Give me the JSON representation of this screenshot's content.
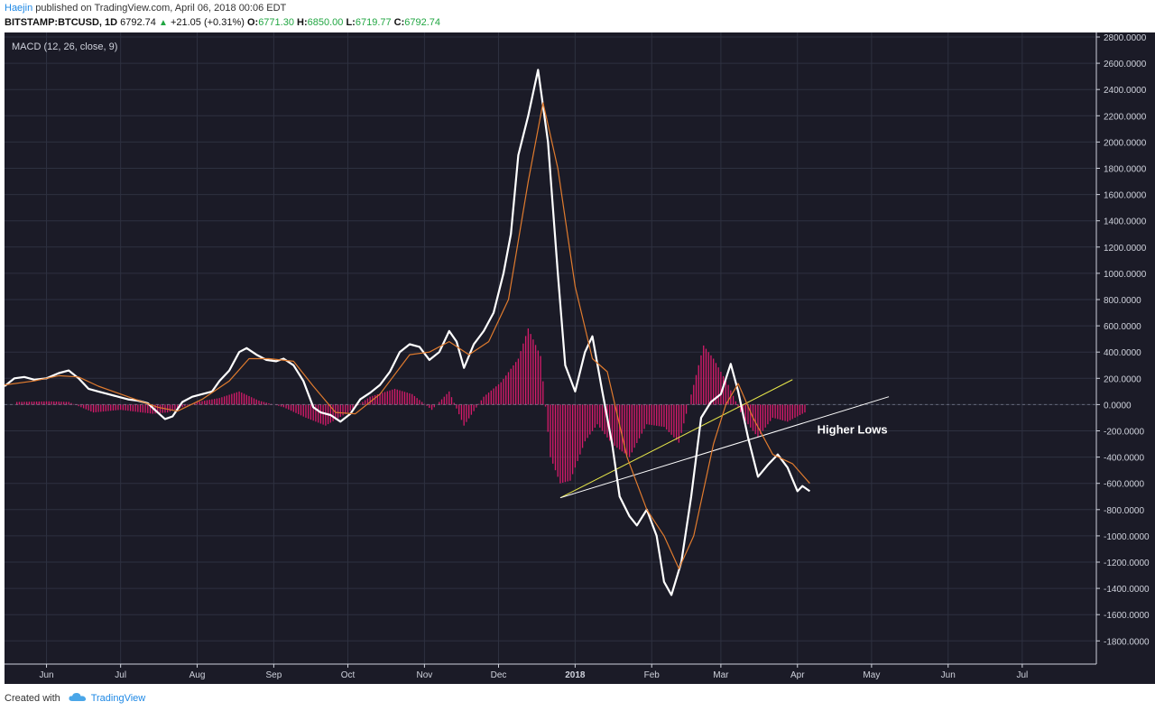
{
  "header": {
    "author": "Haejin",
    "published_text": " published on TradingView.com, April 06, 2018 00:06 EDT",
    "symbol": "BITSTAMP:BTCUSD, 1D",
    "last_price": "6792.74",
    "change": "+21.05 (+0.31%)",
    "o_label": "O:",
    "o_value": "6771.30",
    "h_label": "H:",
    "h_value": "6850.00",
    "l_label": "L:",
    "l_value": "6719.77",
    "c_label": "C:",
    "c_value": "6792.74"
  },
  "footer": {
    "created_with": "Created with",
    "brand": "TradingView"
  },
  "colors": {
    "background": "#1b1b27",
    "grid": "#2e3140",
    "macd_line": "#ffffff",
    "signal_line": "#e07b2e",
    "histogram": "#d81b6b",
    "trendline_yellow": "#e8e84a",
    "trendline_white": "#ffffff",
    "axis_text": "#cfd2dc"
  },
  "chart_data": {
    "type": "line",
    "indicator_label": "MACD (12, 26, close, 9)",
    "annotation": "Higher Lows",
    "ylim": [
      -1900,
      2800
    ],
    "y_ticks": [
      2800,
      2600,
      2400,
      2200,
      2000,
      1800,
      1600,
      1400,
      1200,
      1000,
      800,
      600,
      400,
      200,
      0,
      -200,
      -400,
      -600,
      -800,
      -1000,
      -1200,
      -1400,
      -1600,
      -1800
    ],
    "y_tick_labels": [
      "2800.0000",
      "2600.0000",
      "2400.0000",
      "2200.0000",
      "2000.0000",
      "1800.0000",
      "1600.0000",
      "1400.0000",
      "1200.0000",
      "1000.0000",
      "800.0000",
      "600.0000",
      "400.0000",
      "200.0000",
      "0.0000",
      "-200.0000",
      "-400.0000",
      "-600.0000",
      "-800.0000",
      "-1000.0000",
      "-1200.0000",
      "-1400.0000",
      "-1600.0000",
      "-1800.0000"
    ],
    "x_date_range": [
      "2017-05-15",
      "2018-07-31"
    ],
    "x_ticks": [
      {
        "label": "Jun",
        "date": "2017-06-01"
      },
      {
        "label": "Jul",
        "date": "2017-07-01"
      },
      {
        "label": "Aug",
        "date": "2017-08-01"
      },
      {
        "label": "Sep",
        "date": "2017-09-01"
      },
      {
        "label": "Oct",
        "date": "2017-10-01"
      },
      {
        "label": "Nov",
        "date": "2017-11-01"
      },
      {
        "label": "Dec",
        "date": "2017-12-01"
      },
      {
        "label": "2018",
        "date": "2018-01-01"
      },
      {
        "label": "Feb",
        "date": "2018-02-01"
      },
      {
        "label": "Mar",
        "date": "2018-03-01"
      },
      {
        "label": "Apr",
        "date": "2018-04-01"
      },
      {
        "label": "May",
        "date": "2018-05-01"
      },
      {
        "label": "Jun",
        "date": "2018-06-01"
      },
      {
        "label": "Jul",
        "date": "2018-07-01"
      }
    ],
    "series": [
      {
        "name": "MACD",
        "points": [
          [
            "2017-05-15",
            140
          ],
          [
            "2017-05-19",
            200
          ],
          [
            "2017-05-23",
            210
          ],
          [
            "2017-05-27",
            190
          ],
          [
            "2017-06-01",
            200
          ],
          [
            "2017-06-06",
            240
          ],
          [
            "2017-06-10",
            260
          ],
          [
            "2017-06-14",
            200
          ],
          [
            "2017-06-18",
            120
          ],
          [
            "2017-06-22",
            100
          ],
          [
            "2017-06-26",
            80
          ],
          [
            "2017-06-30",
            60
          ],
          [
            "2017-07-04",
            40
          ],
          [
            "2017-07-08",
            30
          ],
          [
            "2017-07-12",
            10
          ],
          [
            "2017-07-16",
            -60
          ],
          [
            "2017-07-19",
            -110
          ],
          [
            "2017-07-22",
            -90
          ],
          [
            "2017-07-26",
            20
          ],
          [
            "2017-07-30",
            60
          ],
          [
            "2017-08-03",
            80
          ],
          [
            "2017-08-07",
            100
          ],
          [
            "2017-08-10",
            180
          ],
          [
            "2017-08-14",
            260
          ],
          [
            "2017-08-18",
            400
          ],
          [
            "2017-08-21",
            430
          ],
          [
            "2017-08-25",
            380
          ],
          [
            "2017-08-29",
            340
          ],
          [
            "2017-09-02",
            330
          ],
          [
            "2017-09-05",
            350
          ],
          [
            "2017-09-09",
            300
          ],
          [
            "2017-09-13",
            180
          ],
          [
            "2017-09-17",
            -20
          ],
          [
            "2017-09-20",
            -60
          ],
          [
            "2017-09-24",
            -80
          ],
          [
            "2017-09-28",
            -130
          ],
          [
            "2017-10-02",
            -70
          ],
          [
            "2017-10-06",
            40
          ],
          [
            "2017-10-10",
            90
          ],
          [
            "2017-10-14",
            150
          ],
          [
            "2017-10-18",
            250
          ],
          [
            "2017-10-22",
            400
          ],
          [
            "2017-10-26",
            460
          ],
          [
            "2017-10-30",
            440
          ],
          [
            "2017-11-03",
            340
          ],
          [
            "2017-11-07",
            400
          ],
          [
            "2017-11-11",
            560
          ],
          [
            "2017-11-14",
            480
          ],
          [
            "2017-11-17",
            280
          ],
          [
            "2017-11-21",
            460
          ],
          [
            "2017-11-25",
            560
          ],
          [
            "2017-11-29",
            700
          ],
          [
            "2017-12-03",
            1000
          ],
          [
            "2017-12-06",
            1300
          ],
          [
            "2017-12-09",
            1900
          ],
          [
            "2017-12-13",
            2200
          ],
          [
            "2017-12-17",
            2550
          ],
          [
            "2017-12-21",
            2000
          ],
          [
            "2017-12-25",
            1000
          ],
          [
            "2017-12-28",
            300
          ],
          [
            "2018-01-01",
            100
          ],
          [
            "2018-01-05",
            400
          ],
          [
            "2018-01-08",
            520
          ],
          [
            "2018-01-12",
            100
          ],
          [
            "2018-01-16",
            -300
          ],
          [
            "2018-01-19",
            -700
          ],
          [
            "2018-01-23",
            -850
          ],
          [
            "2018-01-26",
            -920
          ],
          [
            "2018-01-30",
            -800
          ],
          [
            "2018-02-03",
            -1000
          ],
          [
            "2018-02-06",
            -1350
          ],
          [
            "2018-02-09",
            -1450
          ],
          [
            "2018-02-13",
            -1200
          ],
          [
            "2018-02-17",
            -700
          ],
          [
            "2018-02-21",
            -100
          ],
          [
            "2018-02-25",
            20
          ],
          [
            "2018-03-01",
            80
          ],
          [
            "2018-03-05",
            310
          ],
          [
            "2018-03-08",
            100
          ],
          [
            "2018-03-12",
            -250
          ],
          [
            "2018-03-16",
            -550
          ],
          [
            "2018-03-20",
            -460
          ],
          [
            "2018-03-24",
            -380
          ],
          [
            "2018-03-28",
            -480
          ],
          [
            "2018-04-01",
            -660
          ],
          [
            "2018-04-03",
            -620
          ],
          [
            "2018-04-06",
            -660
          ]
        ]
      },
      {
        "name": "Signal",
        "points": [
          [
            "2017-05-15",
            150
          ],
          [
            "2017-05-27",
            180
          ],
          [
            "2017-06-06",
            220
          ],
          [
            "2017-06-14",
            210
          ],
          [
            "2017-06-22",
            140
          ],
          [
            "2017-07-04",
            60
          ],
          [
            "2017-07-16",
            -20
          ],
          [
            "2017-07-24",
            -50
          ],
          [
            "2017-08-03",
            40
          ],
          [
            "2017-08-14",
            180
          ],
          [
            "2017-08-22",
            350
          ],
          [
            "2017-08-30",
            350
          ],
          [
            "2017-09-09",
            330
          ],
          [
            "2017-09-17",
            140
          ],
          [
            "2017-09-26",
            -60
          ],
          [
            "2017-10-04",
            -70
          ],
          [
            "2017-10-14",
            80
          ],
          [
            "2017-10-26",
            380
          ],
          [
            "2017-11-03",
            400
          ],
          [
            "2017-11-11",
            480
          ],
          [
            "2017-11-19",
            380
          ],
          [
            "2017-11-27",
            480
          ],
          [
            "2017-12-05",
            800
          ],
          [
            "2017-12-13",
            1700
          ],
          [
            "2017-12-19",
            2300
          ],
          [
            "2017-12-25",
            1800
          ],
          [
            "2018-01-01",
            900
          ],
          [
            "2018-01-08",
            350
          ],
          [
            "2018-01-14",
            250
          ],
          [
            "2018-01-22",
            -400
          ],
          [
            "2018-01-30",
            -800
          ],
          [
            "2018-02-06",
            -1000
          ],
          [
            "2018-02-12",
            -1250
          ],
          [
            "2018-02-18",
            -1000
          ],
          [
            "2018-02-26",
            -300
          ],
          [
            "2018-03-03",
            0
          ],
          [
            "2018-03-08",
            160
          ],
          [
            "2018-03-14",
            -100
          ],
          [
            "2018-03-22",
            -380
          ],
          [
            "2018-03-30",
            -450
          ],
          [
            "2018-04-06",
            -600
          ]
        ]
      }
    ],
    "histogram": [
      [
        "2017-05-20",
        20
      ],
      [
        "2017-06-02",
        25
      ],
      [
        "2017-06-10",
        20
      ],
      [
        "2017-06-20",
        -60
      ],
      [
        "2017-07-01",
        -40
      ],
      [
        "2017-07-14",
        -70
      ],
      [
        "2017-07-20",
        -60
      ],
      [
        "2017-08-01",
        20
      ],
      [
        "2017-08-10",
        50
      ],
      [
        "2017-08-18",
        100
      ],
      [
        "2017-08-26",
        30
      ],
      [
        "2017-09-05",
        -20
      ],
      [
        "2017-09-14",
        -100
      ],
      [
        "2017-09-22",
        -160
      ],
      [
        "2017-10-01",
        -60
      ],
      [
        "2017-10-10",
        60
      ],
      [
        "2017-10-20",
        120
      ],
      [
        "2017-10-27",
        80
      ],
      [
        "2017-11-04",
        -40
      ],
      [
        "2017-11-11",
        100
      ],
      [
        "2017-11-17",
        -160
      ],
      [
        "2017-11-25",
        60
      ],
      [
        "2017-12-02",
        170
      ],
      [
        "2017-12-09",
        350
      ],
      [
        "2017-12-13",
        580
      ],
      [
        "2017-12-18",
        370
      ],
      [
        "2017-12-22",
        -400
      ],
      [
        "2017-12-26",
        -600
      ],
      [
        "2017-12-30",
        -580
      ],
      [
        "2018-01-05",
        -280
      ],
      [
        "2018-01-10",
        -150
      ],
      [
        "2018-01-16",
        -300
      ],
      [
        "2018-01-23",
        -400
      ],
      [
        "2018-01-30",
        -150
      ],
      [
        "2018-02-06",
        -170
      ],
      [
        "2018-02-12",
        -290
      ],
      [
        "2018-02-18",
        150
      ],
      [
        "2018-02-22",
        450
      ],
      [
        "2018-02-26",
        350
      ],
      [
        "2018-03-04",
        150
      ],
      [
        "2018-03-10",
        -100
      ],
      [
        "2018-03-16",
        -250
      ],
      [
        "2018-03-22",
        -100
      ],
      [
        "2018-03-28",
        -130
      ],
      [
        "2018-04-04",
        -60
      ]
    ],
    "trendlines": [
      {
        "name": "yellow",
        "from": [
          "2017-12-26",
          -710
        ],
        "to": [
          "2018-03-30",
          190
        ]
      },
      {
        "name": "white",
        "from": [
          "2017-12-26",
          -710
        ],
        "to": [
          "2018-05-08",
          60
        ]
      }
    ],
    "annotation_point": [
      "2018-04-09",
      -220
    ]
  }
}
